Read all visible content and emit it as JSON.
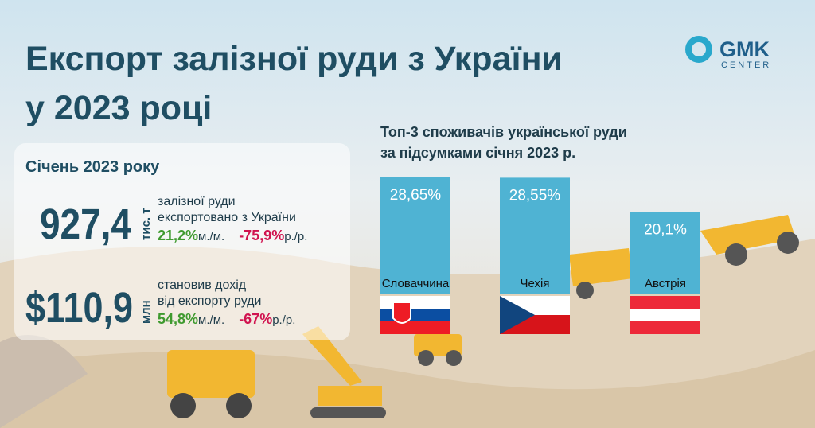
{
  "header": {
    "title": [
      "Експорт залізної руди з України",
      "у 2023 році"
    ],
    "logo": {
      "name": "GMK",
      "sub": "CENTER"
    }
  },
  "stats": {
    "period": "Січень 2023 року",
    "items": [
      {
        "value": "927,4",
        "unit": "тис. т",
        "lines": [
          "залізної руди",
          "експортовано з України"
        ],
        "mom": "21,2%",
        "mom_label": "м./м.",
        "yoy": "-75,9%",
        "yoy_label": "р./р."
      },
      {
        "value": "$110,9",
        "unit": "млн",
        "lines": [
          "становив дохід",
          "від експорту руди"
        ],
        "mom": "54,8%",
        "mom_label": "м./м.",
        "yoy": "-67%",
        "yoy_label": "р./р."
      }
    ]
  },
  "chart_data": {
    "type": "bar",
    "title": [
      "Топ-3 споживачів української руди",
      "за підсумками січня 2023 р."
    ],
    "categories": [
      "Словаччина",
      "Чехія",
      "Австрія"
    ],
    "values": [
      28.65,
      28.55,
      20.1
    ],
    "value_labels": [
      "28,65%",
      "28,55%",
      "20,1%"
    ],
    "color": "#4fb3d3"
  }
}
